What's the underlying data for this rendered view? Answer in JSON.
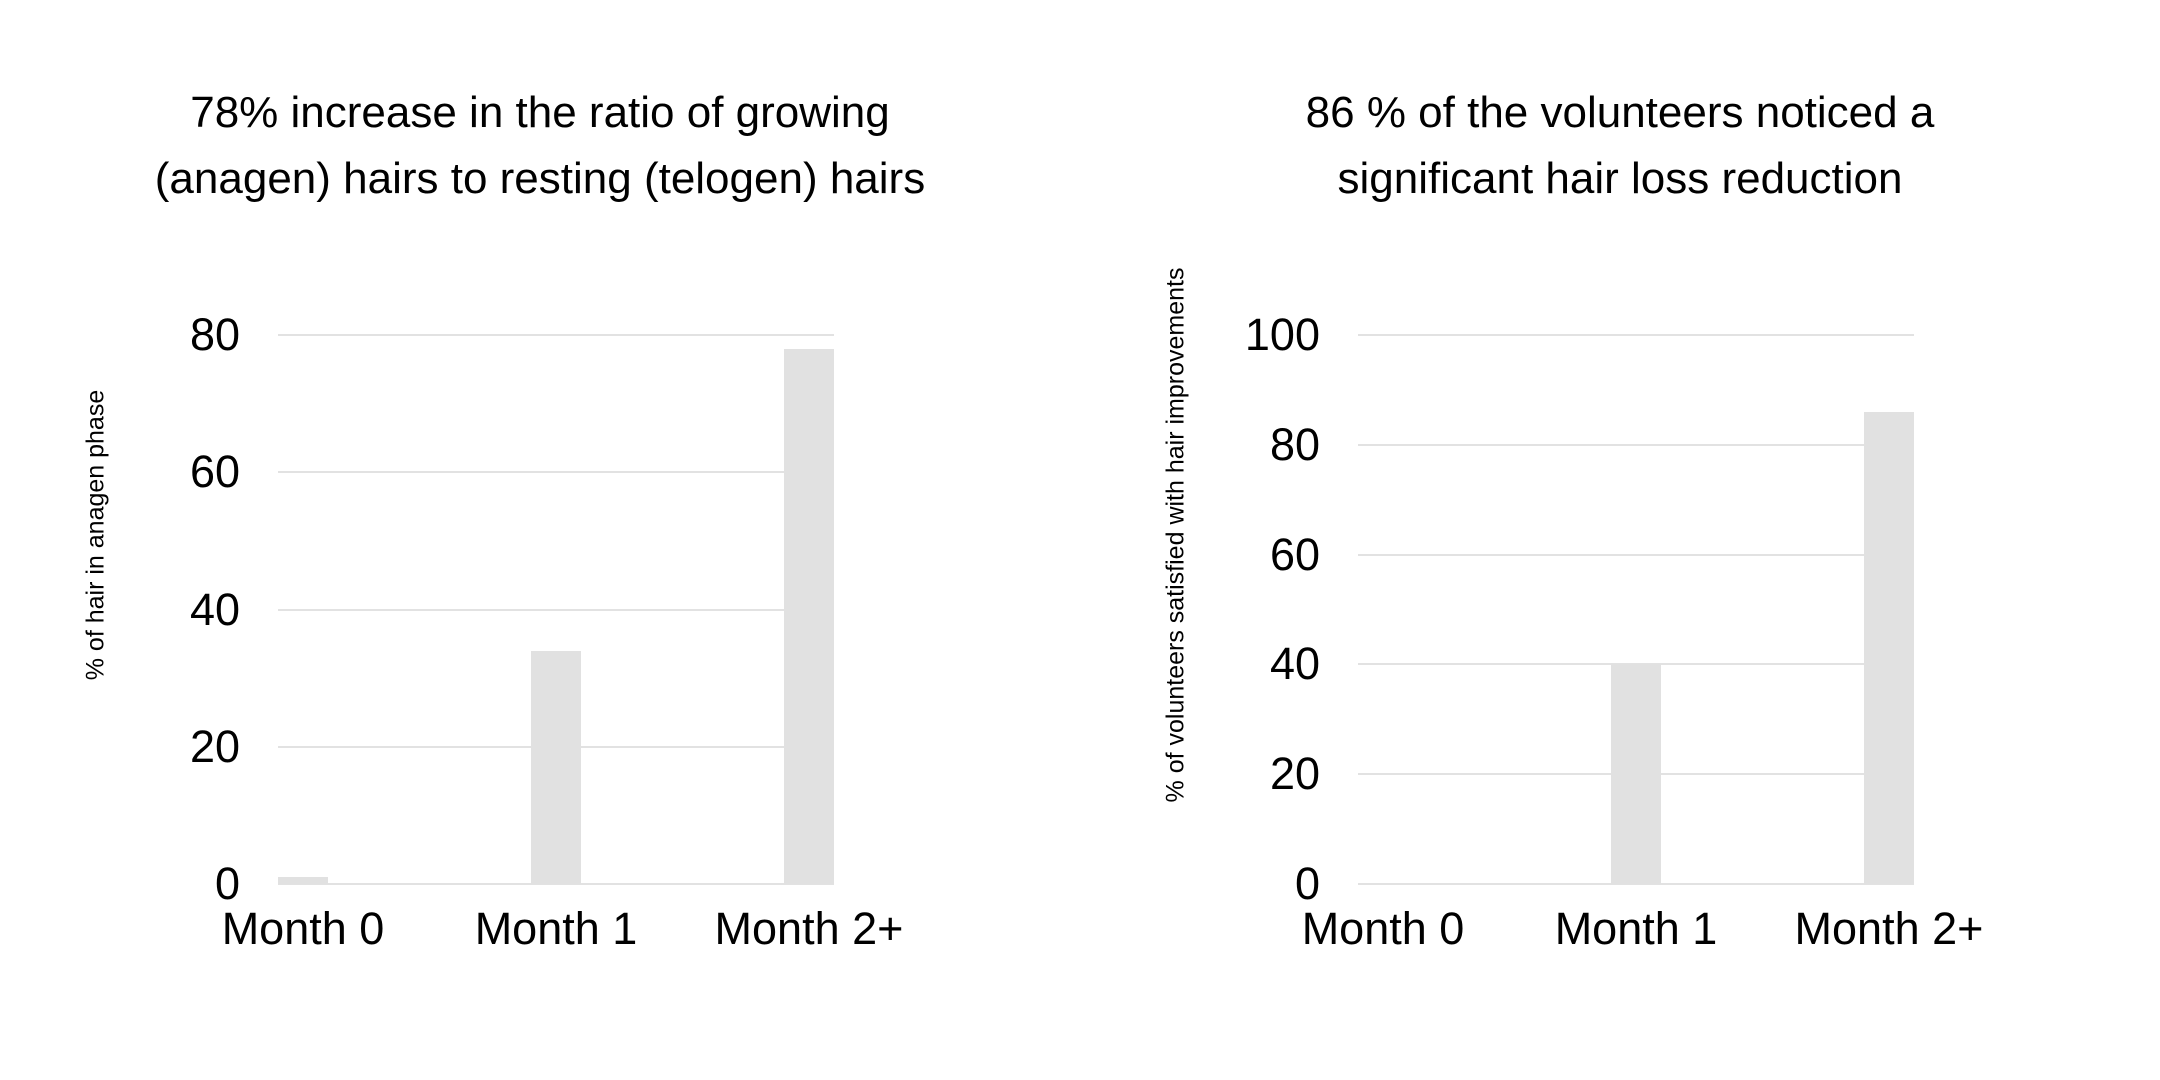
{
  "page": {
    "background_color": "#ffffff",
    "text_color": "#000000"
  },
  "chart_data": [
    {
      "type": "bar",
      "title": "78% increase in the ratio of growing (anagen) hairs to resting (telogen) hairs",
      "title_lines": [
        "78% increase in the ratio of growing",
        "(anagen) hairs to resting (telogen) hairs"
      ],
      "xlabel": "",
      "ylabel": "% of hair in anagen phase",
      "categories": [
        "Month 0",
        "Month 1",
        "Month 2+"
      ],
      "values": [
        1,
        34,
        78
      ],
      "yticks": [
        0,
        20,
        40,
        60,
        80
      ],
      "ylim": [
        0,
        80
      ],
      "grid": "horizontal",
      "legend_position": "none",
      "bar_color": "#e1e1e1",
      "gridline_color": "#e2e2e2"
    },
    {
      "type": "bar",
      "title": "86 % of the volunteers noticed a significant hair loss reduction",
      "title_lines": [
        "86 % of the volunteers noticed a",
        "significant hair loss reduction"
      ],
      "xlabel": "",
      "ylabel": "% of volunteers satisfied with hair improvements",
      "categories": [
        "Month 0",
        "Month 1",
        "Month 2+"
      ],
      "values": [
        0,
        40,
        86
      ],
      "yticks": [
        0,
        20,
        40,
        60,
        80,
        100
      ],
      "ylim": [
        0,
        100
      ],
      "grid": "horizontal",
      "legend_position": "none",
      "bar_color": "#e1e1e1",
      "gridline_color": "#e2e2e2"
    }
  ]
}
